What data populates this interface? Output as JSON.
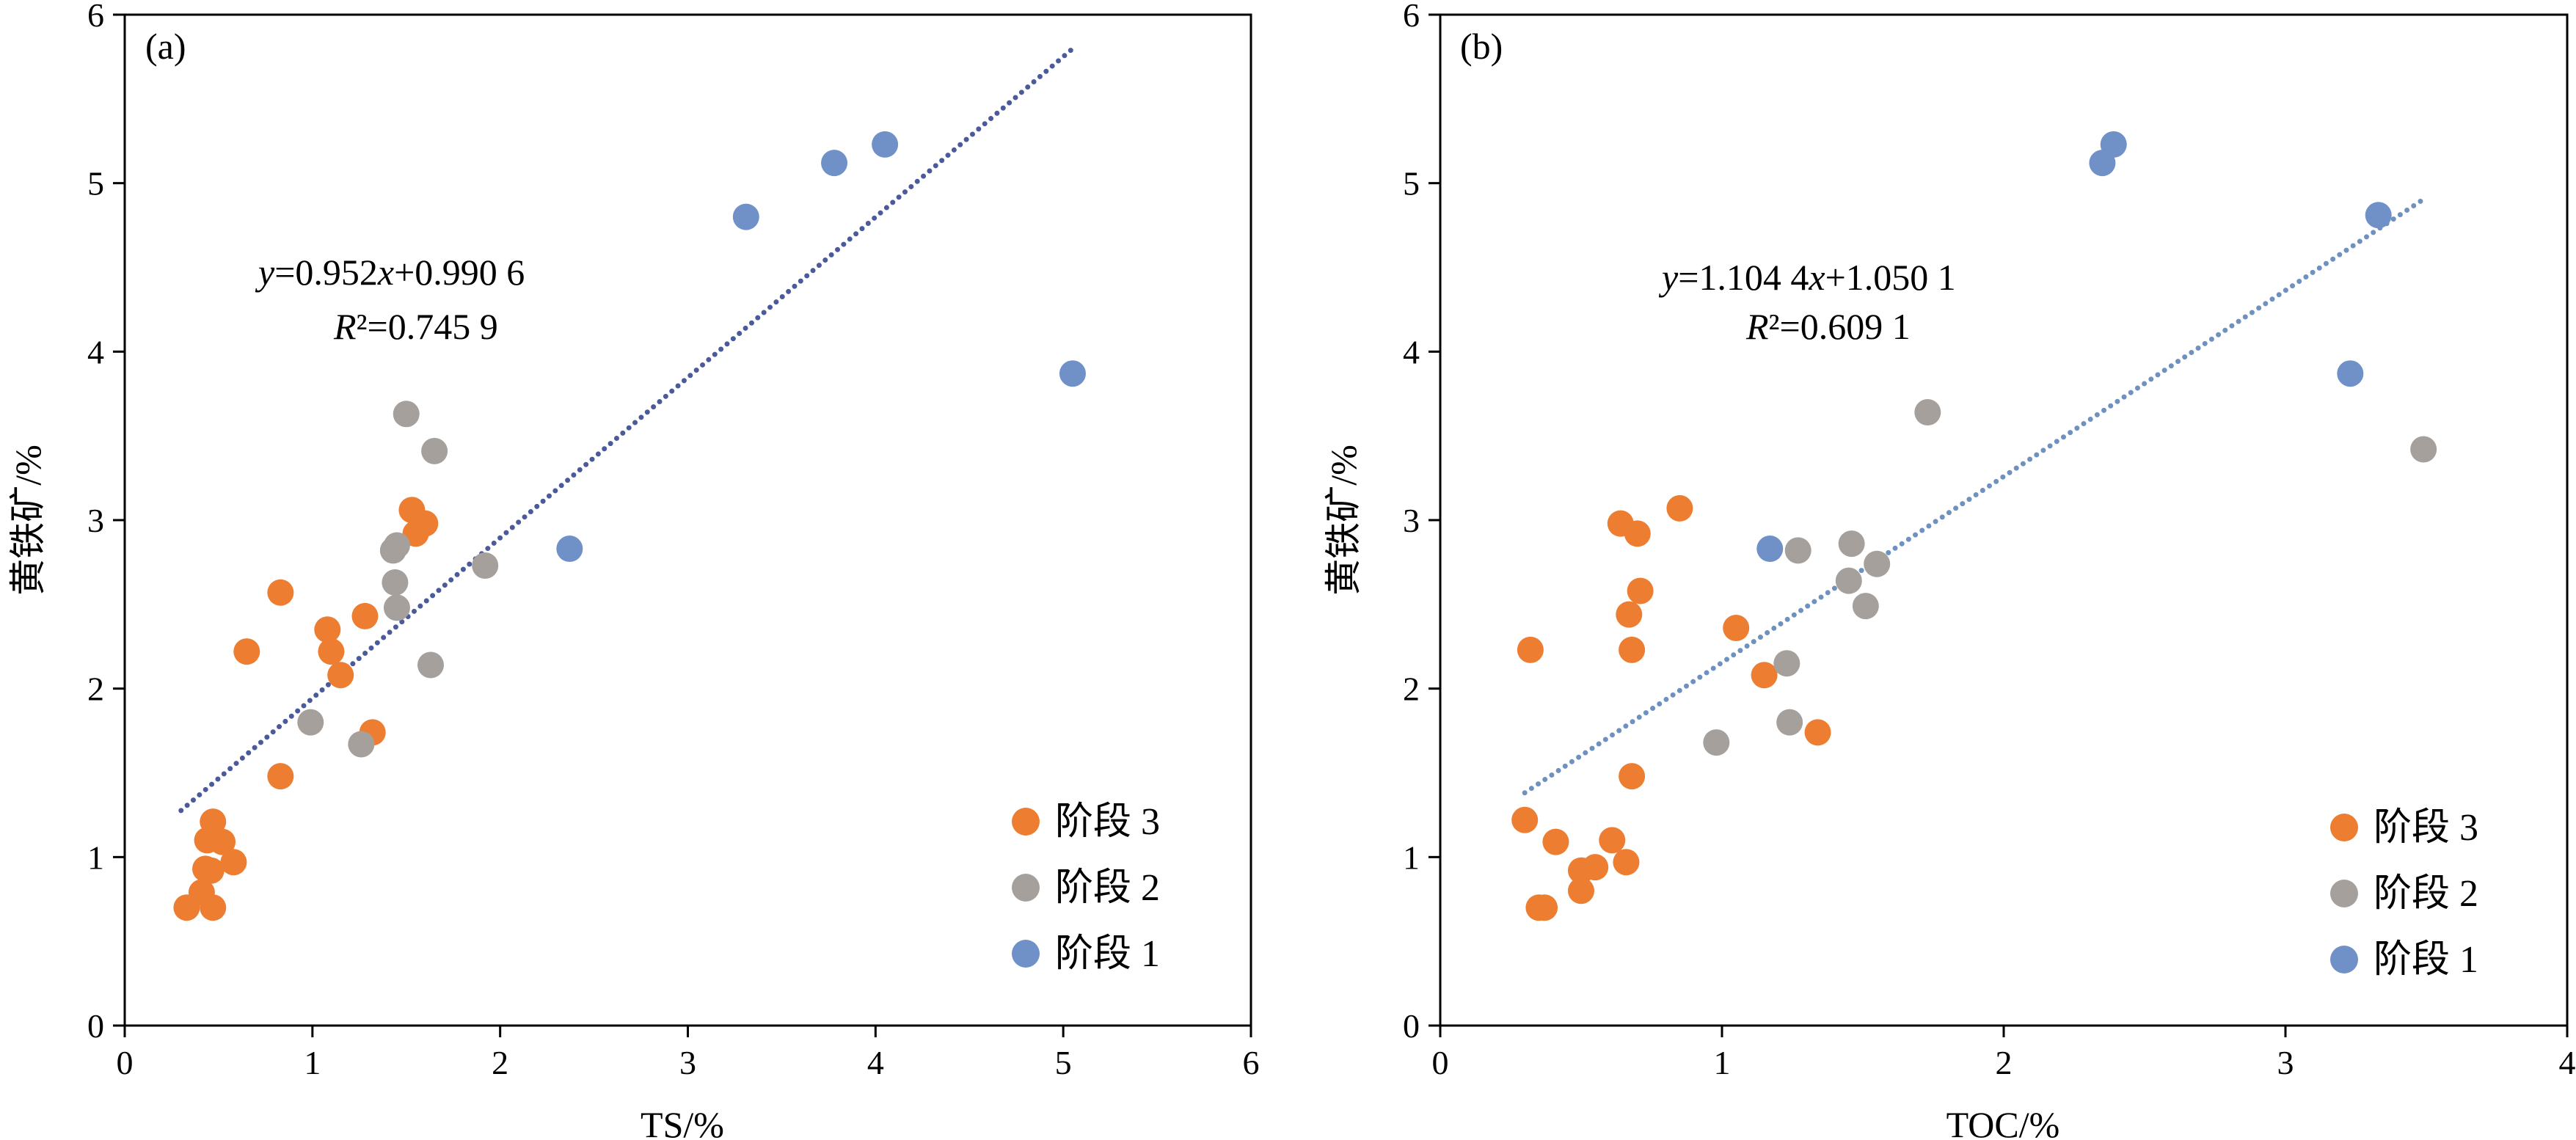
{
  "colors": {
    "stage3": "#ED7D31",
    "stage2": "#A5A09B",
    "stage1": "#6F91C8",
    "trend_a": "#4A5A9A",
    "trend_b": "#6E91C0"
  },
  "legend_labels": {
    "stage3": "阶段 3",
    "stage2": "阶段 2",
    "stage1": "阶段 1"
  },
  "chart_data": [
    {
      "type": "scatter",
      "panel_label": "(a)",
      "xlabel": "TS/%",
      "ylabel": "黄铁矿/%",
      "xlim": [
        0,
        6
      ],
      "ylim": [
        0,
        6
      ],
      "xticks": [
        "0",
        "1",
        "2",
        "3",
        "4",
        "5",
        "6"
      ],
      "yticks": [
        "0",
        "1",
        "2",
        "3",
        "4",
        "5",
        "6"
      ],
      "legend_position": "bottom-right",
      "equation": {
        "y": "y",
        "eq1": "=0.952",
        "x": "x",
        "eq2": "+0.990 6",
        "r": "R",
        "r2": "²=0.745 9"
      },
      "trendline": {
        "slope": 0.952,
        "intercept": 0.9906,
        "x_range": [
          0.3,
          5.05
        ]
      },
      "series": [
        {
          "name": "阶段 3",
          "key": "stage3",
          "points": [
            [
              0.33,
              0.7
            ],
            [
              0.41,
              0.79
            ],
            [
              0.43,
              0.93
            ],
            [
              0.44,
              1.1
            ],
            [
              0.47,
              1.21
            ],
            [
              0.47,
              0.7
            ],
            [
              0.46,
              0.92
            ],
            [
              0.52,
              1.09
            ],
            [
              0.58,
              0.97
            ],
            [
              0.83,
              2.57
            ],
            [
              0.65,
              2.22
            ],
            [
              0.83,
              1.48
            ],
            [
              1.08,
              2.35
            ],
            [
              1.1,
              2.22
            ],
            [
              1.15,
              2.08
            ],
            [
              1.28,
              2.43
            ],
            [
              1.32,
              1.74
            ],
            [
              1.53,
              3.06
            ],
            [
              1.55,
              2.92
            ],
            [
              1.6,
              2.98
            ]
          ]
        },
        {
          "name": "阶段 2",
          "key": "stage2",
          "points": [
            [
              0.99,
              1.8
            ],
            [
              1.26,
              1.67
            ],
            [
              1.43,
              2.82
            ],
            [
              1.45,
              2.85
            ],
            [
              1.44,
              2.63
            ],
            [
              1.45,
              2.48
            ],
            [
              1.5,
              3.63
            ],
            [
              1.65,
              3.41
            ],
            [
              1.63,
              2.14
            ],
            [
              1.92,
              2.73
            ]
          ]
        },
        {
          "name": "阶段 1",
          "key": "stage1",
          "points": [
            [
              2.37,
              2.83
            ],
            [
              3.31,
              4.8
            ],
            [
              3.78,
              5.12
            ],
            [
              4.05,
              5.23
            ],
            [
              5.05,
              3.87
            ]
          ]
        }
      ]
    },
    {
      "type": "scatter",
      "panel_label": "(b)",
      "xlabel": "TOC/%",
      "ylabel": "黄铁矿/%",
      "xlim": [
        0,
        4
      ],
      "ylim": [
        0,
        6
      ],
      "xticks": [
        "0",
        "1",
        "2",
        "3",
        "4"
      ],
      "yticks": [
        "0",
        "1",
        "2",
        "3",
        "4",
        "5",
        "6"
      ],
      "legend_position": "bottom-right",
      "equation": {
        "y": "y",
        "eq1": "=1.104 4",
        "x": "x",
        "eq2": "+1.050 1",
        "r": "R",
        "r2": "²=0.609 1"
      },
      "trendline": {
        "slope": 1.1044,
        "intercept": 1.0501,
        "x_range": [
          0.3,
          3.5
        ]
      },
      "series": [
        {
          "name": "阶段 3",
          "key": "stage3",
          "points": [
            [
              0.3,
              1.22
            ],
            [
              0.32,
              2.23
            ],
            [
              0.35,
              0.7
            ],
            [
              0.37,
              0.7
            ],
            [
              0.41,
              1.09
            ],
            [
              0.5,
              0.92
            ],
            [
              0.5,
              0.8
            ],
            [
              0.55,
              0.94
            ],
            [
              0.61,
              1.1
            ],
            [
              0.66,
              0.97
            ],
            [
              0.64,
              2.98
            ],
            [
              0.67,
              2.44
            ],
            [
              0.68,
              2.23
            ],
            [
              0.68,
              1.48
            ],
            [
              0.7,
              2.92
            ],
            [
              0.71,
              2.58
            ],
            [
              0.85,
              3.07
            ],
            [
              1.05,
              2.36
            ],
            [
              1.15,
              2.08
            ],
            [
              1.34,
              1.74
            ]
          ]
        },
        {
          "name": "阶段 2",
          "key": "stage2",
          "points": [
            [
              0.98,
              1.68
            ],
            [
              1.23,
              2.15
            ],
            [
              1.24,
              1.8
            ],
            [
              1.27,
              2.82
            ],
            [
              1.45,
              2.64
            ],
            [
              1.46,
              2.86
            ],
            [
              1.51,
              2.49
            ],
            [
              1.55,
              2.74
            ],
            [
              1.73,
              3.64
            ],
            [
              3.49,
              3.42
            ]
          ]
        },
        {
          "name": "阶段 1",
          "key": "stage1",
          "points": [
            [
              1.17,
              2.83
            ],
            [
              2.35,
              5.12
            ],
            [
              2.39,
              5.23
            ],
            [
              3.23,
              3.87
            ],
            [
              3.33,
              4.81
            ]
          ]
        }
      ]
    }
  ]
}
